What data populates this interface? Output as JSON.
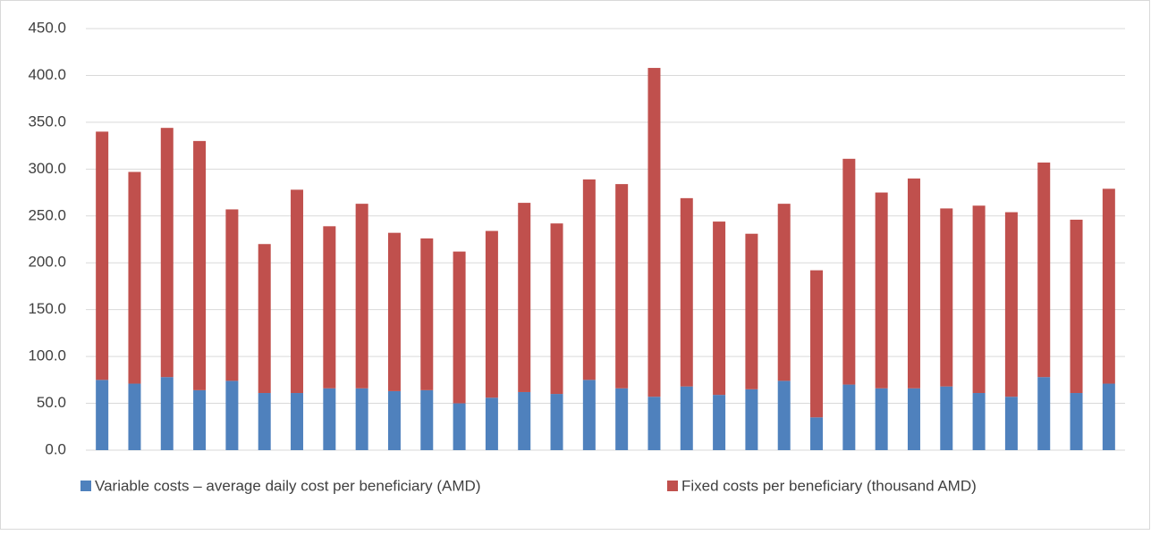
{
  "chart_data": {
    "type": "stacked_bar",
    "categories": [
      null,
      null,
      null,
      null,
      null,
      null,
      null,
      null,
      null,
      null,
      null,
      null,
      null,
      null,
      null,
      null,
      null,
      null,
      null,
      null,
      null,
      null,
      null,
      null,
      null,
      null,
      null,
      null,
      null,
      null,
      null,
      null
    ],
    "series": [
      {
        "name": "Variable costs – average daily cost per beneficiary (AMD)",
        "color": "#4f81bd",
        "values": [
          75,
          71,
          78,
          64,
          74,
          61,
          61,
          66,
          66,
          63,
          64,
          50,
          56,
          62,
          60,
          75,
          66,
          57,
          68,
          59,
          65,
          74,
          35,
          70,
          66,
          66,
          68,
          61,
          57,
          78,
          61,
          71
        ]
      },
      {
        "name": "Fixed costs per beneficiary (thousand AMD)",
        "color": "#c0504d",
        "values": [
          265,
          226,
          266,
          266,
          183,
          159,
          217,
          173,
          197,
          169,
          162,
          162,
          178,
          202,
          182,
          214,
          218,
          351,
          201,
          185,
          166,
          189,
          157,
          241,
          209,
          224,
          190,
          200,
          197,
          229,
          185,
          208
        ]
      }
    ],
    "ylim": [
      0,
      450
    ],
    "yticks": [
      {
        "value": 0,
        "label": "0.0"
      },
      {
        "value": 50,
        "label": "50.0"
      },
      {
        "value": 100,
        "label": "100.0"
      },
      {
        "value": 150,
        "label": "150.0"
      },
      {
        "value": 200,
        "label": "200.0"
      },
      {
        "value": 250,
        "label": "250.0"
      },
      {
        "value": 300,
        "label": "300.0"
      },
      {
        "value": 350,
        "label": "350.0"
      },
      {
        "value": 400,
        "label": "400.0"
      },
      {
        "value": 450,
        "label": "450.0"
      }
    ],
    "grid": true,
    "legend": "bottom"
  }
}
